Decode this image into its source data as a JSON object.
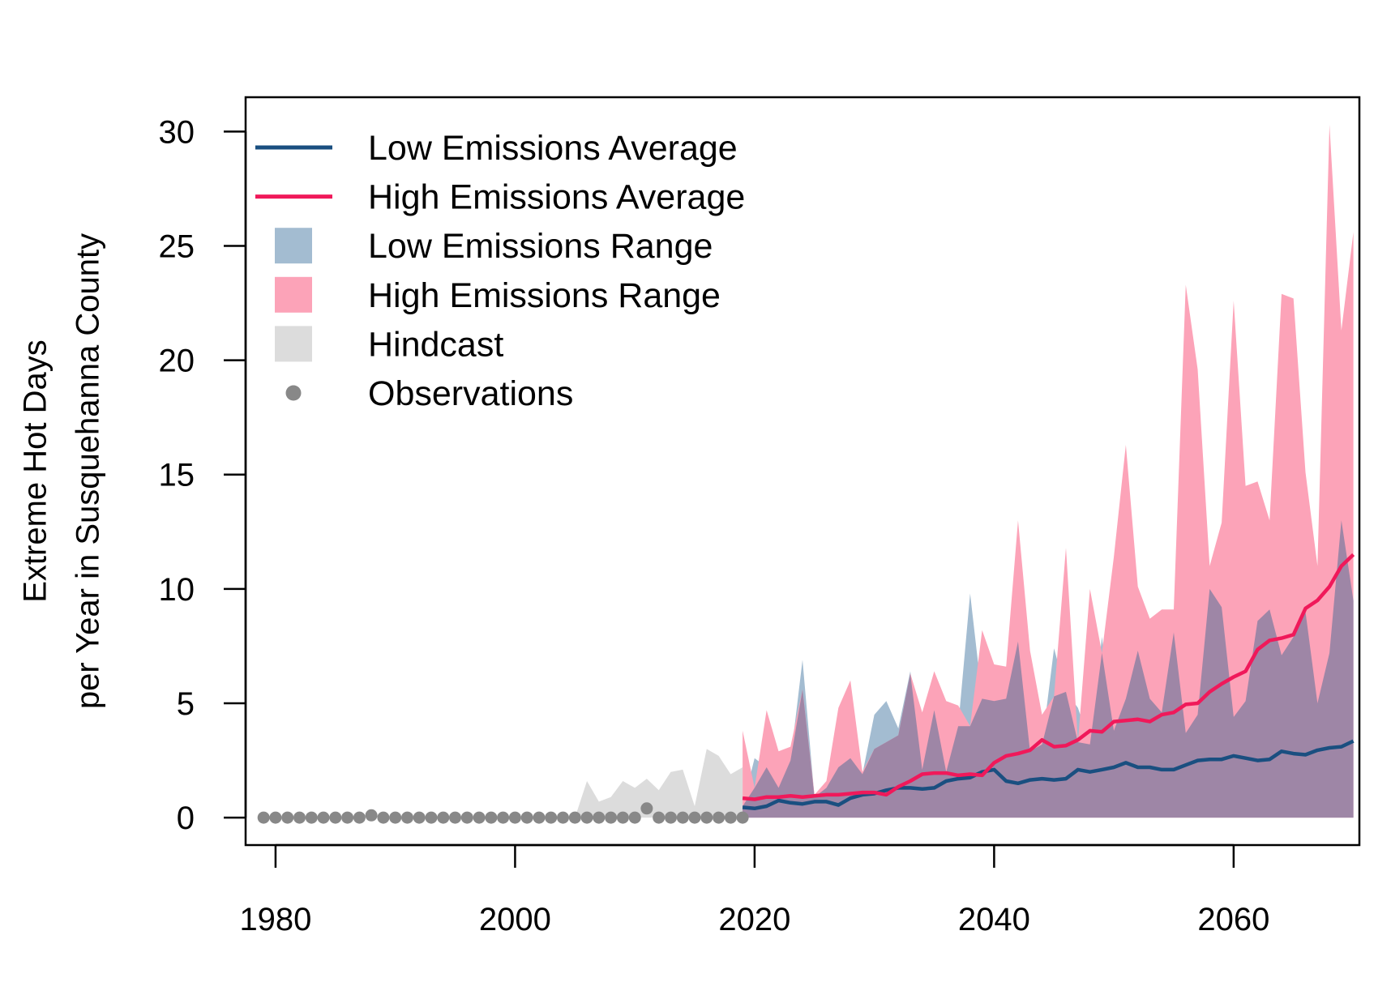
{
  "chart_data": {
    "type": "area",
    "title": "",
    "xlabel": "",
    "ylabel_lines": [
      "Extreme Hot Days",
      "per Year in Susquehanna County"
    ],
    "xlim": [
      1977.5,
      2070.5
    ],
    "ylim": [
      -1.2,
      31.5
    ],
    "x_ticks": [
      1980,
      2000,
      2020,
      2040,
      2060
    ],
    "y_ticks": [
      0,
      5,
      10,
      15,
      20,
      25,
      30
    ],
    "grid": false,
    "legend_position": "top-left",
    "legend": [
      {
        "label": "Low Emissions Average",
        "kind": "line",
        "color": "#1a4f80"
      },
      {
        "label": "High Emissions Average",
        "kind": "line",
        "color": "#f0195a"
      },
      {
        "label": "Low Emissions Range",
        "kind": "box",
        "color": "#a3bcd1"
      },
      {
        "label": "High Emissions Range",
        "kind": "box",
        "color": "#fca3b8"
      },
      {
        "label": "Hindcast",
        "kind": "box",
        "color": "#dcdcdc"
      },
      {
        "label": "Observations",
        "kind": "point",
        "color": "#888888"
      }
    ],
    "colors": {
      "low_avg": "#1a4f80",
      "high_avg": "#f0195a",
      "low_range": "#a3bcd1",
      "high_range": "#fca3b8",
      "overlap": "#9e86a6",
      "hindcast": "#dcdcdc",
      "observations": "#888888"
    },
    "hindcast": {
      "x": [
        2005,
        2006,
        2007,
        2008,
        2009,
        2010,
        2011,
        2012,
        2013,
        2014,
        2015,
        2016,
        2017,
        2018,
        2019
      ],
      "upper": [
        0,
        1.6,
        0.7,
        0.9,
        1.6,
        1.3,
        1.7,
        1.2,
        2.0,
        2.1,
        0.5,
        3.0,
        2.7,
        1.9,
        2.2
      ]
    },
    "observations": {
      "x": [
        1979,
        1980,
        1981,
        1982,
        1983,
        1984,
        1985,
        1986,
        1987,
        1988,
        1989,
        1990,
        1991,
        1992,
        1993,
        1994,
        1995,
        1996,
        1997,
        1998,
        1999,
        2000,
        2001,
        2002,
        2003,
        2004,
        2005,
        2006,
        2007,
        2008,
        2009,
        2010,
        2011,
        2012,
        2013,
        2014,
        2015,
        2016,
        2017,
        2018,
        2019
      ],
      "y": [
        0,
        0,
        0,
        0,
        0,
        0,
        0,
        0,
        0,
        0.1,
        0,
        0,
        0,
        0,
        0,
        0,
        0,
        0,
        0,
        0,
        0,
        0,
        0,
        0,
        0,
        0,
        0,
        0,
        0,
        0,
        0,
        0,
        0.4,
        0,
        0,
        0,
        0,
        0,
        0,
        0,
        0
      ]
    },
    "projection_years": [
      2019,
      2020,
      2021,
      2022,
      2023,
      2024,
      2025,
      2026,
      2027,
      2028,
      2029,
      2030,
      2031,
      2032,
      2033,
      2034,
      2035,
      2036,
      2037,
      2038,
      2039,
      2040,
      2041,
      2042,
      2043,
      2044,
      2045,
      2046,
      2047,
      2048,
      2049,
      2050,
      2051,
      2052,
      2053,
      2054,
      2055,
      2056,
      2057,
      2058,
      2059,
      2060,
      2061,
      2062,
      2063,
      2064,
      2065,
      2066,
      2067,
      2068,
      2069,
      2070
    ],
    "series": [
      {
        "name": "Low Emissions Range",
        "upper": [
          0.5,
          2.6,
          2.2,
          1.3,
          2.5,
          6.9,
          0.9,
          1.3,
          2.2,
          2.6,
          1.9,
          4.5,
          5.1,
          3.9,
          6.4,
          2.1,
          4.7,
          2.0,
          4.0,
          9.8,
          5.2,
          5.1,
          5.2,
          7.7,
          2.9,
          3.2,
          7.4,
          5.5,
          4.8,
          3.2,
          7.9,
          3.8,
          5.2,
          7.3,
          5.2,
          4.6,
          8.1,
          3.7,
          4.5,
          10.0,
          9.2,
          4.4,
          5.1,
          8.6,
          9.1,
          7.1,
          7.9,
          9.0,
          5.0,
          7.2,
          13.0,
          9.5
        ],
        "lower": [
          0,
          0,
          0,
          0,
          0,
          0,
          0,
          0,
          0,
          0,
          0,
          0,
          0,
          0,
          0,
          0,
          0,
          0,
          0,
          0,
          0,
          0,
          0,
          0,
          0,
          0,
          0,
          0,
          0,
          0,
          0,
          0,
          0,
          0,
          0,
          0,
          0,
          0,
          0,
          0,
          0,
          0,
          0,
          0,
          0,
          0,
          0,
          0,
          0,
          0,
          0,
          0
        ]
      },
      {
        "name": "High Emissions Range",
        "upper": [
          3.8,
          1.3,
          4.7,
          2.9,
          3.1,
          5.6,
          1.0,
          1.6,
          4.8,
          6.0,
          2.0,
          3.0,
          3.3,
          3.6,
          6.3,
          4.6,
          6.4,
          5.1,
          4.9,
          4.0,
          8.2,
          6.7,
          6.6,
          13.0,
          7.3,
          4.5,
          5.3,
          11.8,
          3.3,
          10.0,
          7.2,
          11.4,
          16.3,
          10.1,
          8.7,
          9.1,
          9.1,
          23.3,
          19.6,
          11.0,
          12.9,
          22.6,
          14.5,
          14.7,
          13.0,
          22.9,
          22.7,
          15.1,
          11.0,
          30.3,
          21.3,
          25.6
        ],
        "lower": [
          0,
          0,
          0,
          0,
          0,
          0,
          0,
          0,
          0,
          0,
          0,
          0,
          0,
          0,
          0,
          0,
          0,
          0,
          0,
          0,
          0,
          0,
          0,
          0,
          0,
          0,
          0,
          0,
          0,
          0,
          0,
          0,
          0,
          0,
          0,
          0,
          0,
          0,
          0,
          0,
          0,
          0,
          0,
          0,
          0,
          0,
          0,
          0,
          0,
          0,
          0,
          0
        ]
      },
      {
        "name": "Low Emissions Average",
        "values": [
          0.45,
          0.4,
          0.5,
          0.75,
          0.65,
          0.6,
          0.7,
          0.7,
          0.55,
          0.85,
          1.0,
          1.05,
          1.2,
          1.3,
          1.3,
          1.25,
          1.3,
          1.6,
          1.7,
          1.75,
          2.0,
          2.1,
          1.6,
          1.5,
          1.65,
          1.7,
          1.65,
          1.7,
          2.1,
          2.0,
          2.1,
          2.2,
          2.4,
          2.2,
          2.2,
          2.1,
          2.1,
          2.3,
          2.5,
          2.55,
          2.55,
          2.7,
          2.6,
          2.5,
          2.55,
          2.9,
          2.8,
          2.75,
          2.95,
          3.05,
          3.1,
          3.35
        ]
      },
      {
        "name": "High Emissions Average",
        "values": [
          0.85,
          0.8,
          0.9,
          0.9,
          0.95,
          0.9,
          0.95,
          1.0,
          1.0,
          1.05,
          1.1,
          1.1,
          1.0,
          1.35,
          1.6,
          1.9,
          1.95,
          1.95,
          1.85,
          1.9,
          1.85,
          2.4,
          2.7,
          2.8,
          2.95,
          3.4,
          3.1,
          3.15,
          3.4,
          3.8,
          3.75,
          4.2,
          4.25,
          4.3,
          4.2,
          4.5,
          4.6,
          4.95,
          5.0,
          5.5,
          5.85,
          6.15,
          6.4,
          7.35,
          7.75,
          7.85,
          8.0,
          9.15,
          9.5,
          10.1,
          11.0,
          11.5
        ]
      }
    ]
  }
}
